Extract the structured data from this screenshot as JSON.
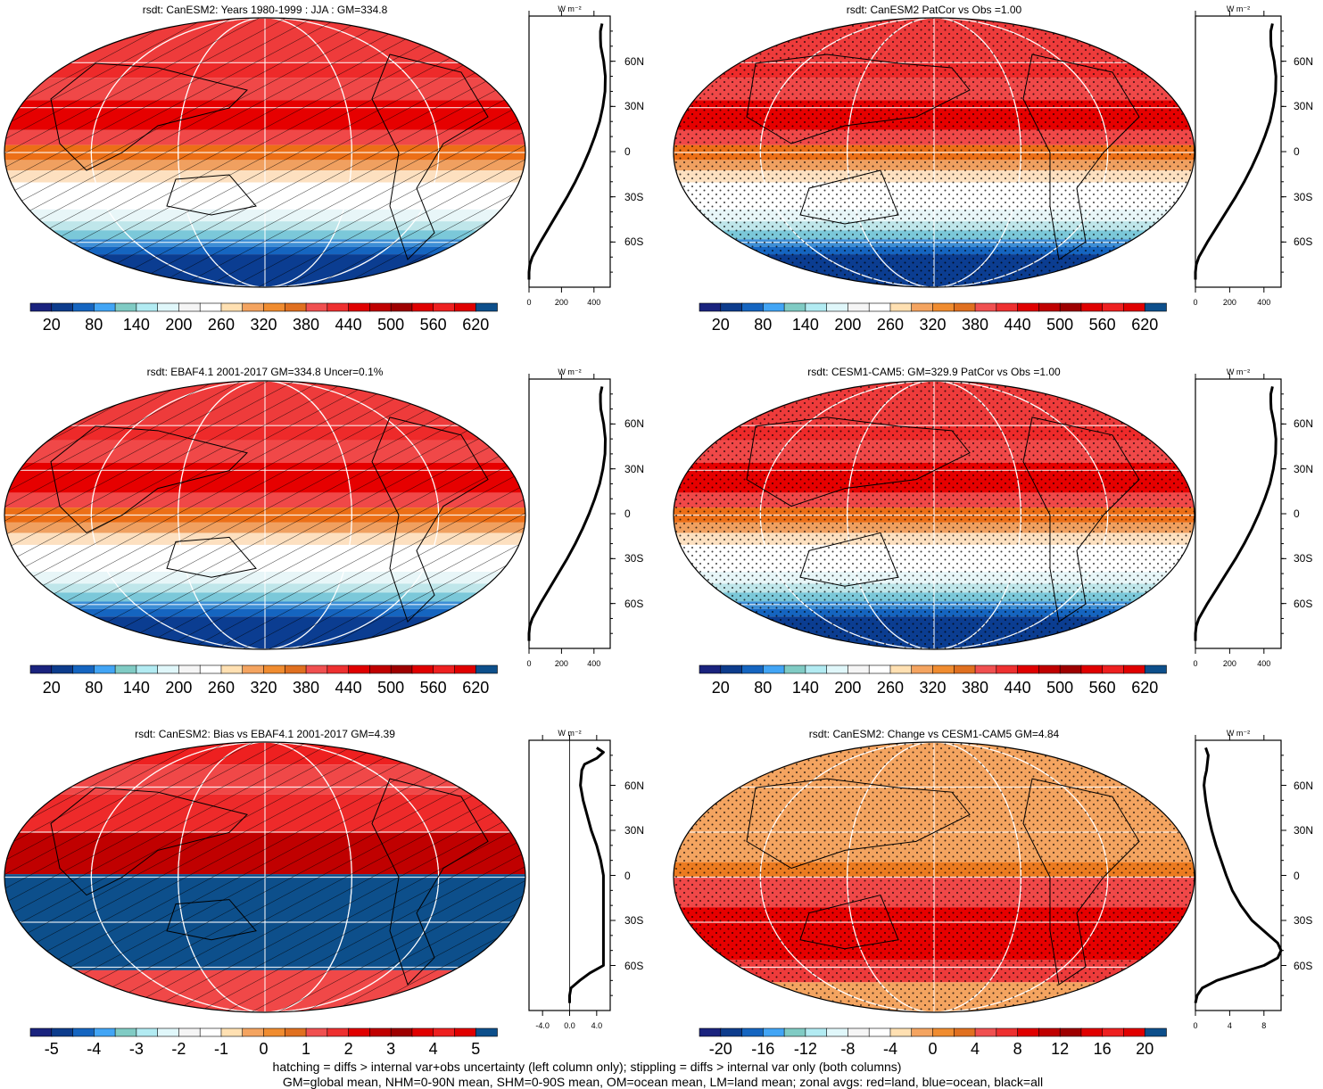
{
  "figure": {
    "footer_line1": "hatching = diffs > internal var+obs uncertainty (left column only); stippling = diffs > internal var only (both columns)",
    "footer_line2": "GM=global mean, NHM=0-90N mean, SHM=0-90S mean, OM=ocean mean, LM=land mean; zonal avgs: red=land, blue=ocean, black=all",
    "unit_label": "W m⁻²"
  },
  "palettes": {
    "abs": [
      "#1a237e",
      "#0d3c8c",
      "#1565c0",
      "#42a5f5",
      "#80cbc4",
      "#b2ebf2",
      "#e0f7fa",
      "#f5f5f5",
      "#ffffff",
      "#ffe0b2",
      "#f4a460",
      "#f08c30",
      "#e07020",
      "#f05050",
      "#ee3030",
      "#e00000",
      "#c00000",
      "#9e0000",
      "#e00000",
      "#ee2020",
      "#e00000",
      "#0d4f8b"
    ],
    "diff": [
      "#1a237e",
      "#0d3c8c",
      "#1565c0",
      "#42a5f5",
      "#80cbc4",
      "#b2ebf2",
      "#e0f7fa",
      "#f5f5f5",
      "#ffffff",
      "#ffe0b2",
      "#f4a460",
      "#f08c30",
      "#e07020",
      "#f05050",
      "#ee3030",
      "#e00000",
      "#c00000",
      "#9e0000",
      "#e00000",
      "#ee2020",
      "#e00000",
      "#0d4f8b"
    ]
  },
  "chart_data": [
    {
      "type": "heatmap",
      "panel": "top-left",
      "title": "rsdt: CanESM2: Years 1980-1999 : JJA : GM=334.8",
      "colorbar_labels": [
        "20",
        "80",
        "140",
        "200",
        "260",
        "320",
        "380",
        "440",
        "500",
        "560",
        "620"
      ],
      "overlay": "hatching",
      "lat_values": [
        90,
        75,
        60,
        45,
        30,
        15,
        0,
        -15,
        -30,
        -45,
        -60,
        -75,
        -90
      ],
      "field_values": [
        440,
        450,
        470,
        470,
        460,
        430,
        380,
        320,
        250,
        160,
        70,
        5,
        0
      ],
      "zonal_profile": {
        "x_ticks": [
          "0",
          "200",
          "400"
        ],
        "xlim": [
          0,
          500
        ],
        "y_ticks": [
          "60N",
          "30N",
          "0",
          "30S",
          "60S"
        ],
        "lat": [
          85,
          80,
          75,
          70,
          60,
          50,
          40,
          30,
          20,
          10,
          0,
          -10,
          -20,
          -30,
          -40,
          -50,
          -60,
          -70,
          -75,
          -80,
          -85
        ],
        "values": [
          450,
          440,
          440,
          442,
          460,
          470,
          468,
          455,
          435,
          405,
          370,
          330,
          285,
          235,
          180,
          125,
          70,
          20,
          5,
          0,
          0
        ]
      }
    },
    {
      "type": "heatmap",
      "panel": "top-right",
      "title": "rsdt: CanESM2 PatCor vs Obs =1.00",
      "colorbar_labels": [
        "20",
        "80",
        "140",
        "200",
        "260",
        "320",
        "380",
        "440",
        "500",
        "560",
        "620"
      ],
      "overlay": "stippling",
      "lat_values": [
        90,
        75,
        60,
        45,
        30,
        15,
        0,
        -15,
        -30,
        -45,
        -60,
        -75,
        -90
      ],
      "field_values": [
        440,
        450,
        470,
        470,
        460,
        430,
        380,
        320,
        250,
        160,
        70,
        5,
        0
      ],
      "zonal_profile": {
        "x_ticks": [
          "0",
          "200",
          "400"
        ],
        "xlim": [
          0,
          500
        ],
        "y_ticks": [
          "60N",
          "30N",
          "0",
          "30S",
          "60S"
        ],
        "lat": [
          85,
          80,
          75,
          70,
          60,
          50,
          40,
          30,
          20,
          10,
          0,
          -10,
          -20,
          -30,
          -40,
          -50,
          -60,
          -70,
          -75,
          -80,
          -85
        ],
        "values": [
          450,
          440,
          440,
          442,
          460,
          470,
          468,
          455,
          435,
          405,
          370,
          330,
          285,
          235,
          180,
          125,
          70,
          20,
          5,
          0,
          0
        ]
      }
    },
    {
      "type": "heatmap",
      "panel": "middle-left",
      "title": "rsdt: EBAF4.1 2001-2017 GM=334.8 Uncer=0.1%",
      "colorbar_labels": [
        "20",
        "80",
        "140",
        "200",
        "260",
        "320",
        "380",
        "440",
        "500",
        "560",
        "620"
      ],
      "overlay": "hatching",
      "lat_values": [
        90,
        75,
        60,
        45,
        30,
        15,
        0,
        -15,
        -30,
        -45,
        -60,
        -75,
        -90
      ],
      "field_values": [
        440,
        450,
        470,
        470,
        460,
        430,
        380,
        320,
        250,
        160,
        70,
        5,
        0
      ],
      "zonal_profile": {
        "x_ticks": [
          "0",
          "200",
          "400"
        ],
        "xlim": [
          0,
          500
        ],
        "y_ticks": [
          "60N",
          "30N",
          "0",
          "30S",
          "60S"
        ],
        "lat": [
          85,
          80,
          75,
          70,
          60,
          50,
          40,
          30,
          20,
          10,
          0,
          -10,
          -20,
          -30,
          -40,
          -50,
          -60,
          -70,
          -75,
          -80,
          -85
        ],
        "values": [
          450,
          440,
          440,
          442,
          460,
          470,
          468,
          455,
          435,
          405,
          370,
          330,
          285,
          235,
          180,
          125,
          70,
          20,
          5,
          0,
          0
        ]
      }
    },
    {
      "type": "heatmap",
      "panel": "middle-right",
      "title": "rsdt: CESM1-CAM5: GM=329.9 PatCor vs Obs =1.00",
      "colorbar_labels": [
        "20",
        "80",
        "140",
        "200",
        "260",
        "320",
        "380",
        "440",
        "500",
        "560",
        "620"
      ],
      "overlay": "stippling",
      "lat_values": [
        90,
        75,
        60,
        45,
        30,
        15,
        0,
        -15,
        -30,
        -45,
        -60,
        -75,
        -90
      ],
      "field_values": [
        440,
        450,
        470,
        470,
        460,
        430,
        380,
        320,
        250,
        160,
        70,
        5,
        0
      ],
      "zonal_profile": {
        "x_ticks": [
          "0",
          "200",
          "400"
        ],
        "xlim": [
          0,
          500
        ],
        "y_ticks": [
          "60N",
          "30N",
          "0",
          "30S",
          "60S"
        ],
        "lat": [
          85,
          80,
          75,
          70,
          60,
          50,
          40,
          30,
          20,
          10,
          0,
          -10,
          -20,
          -30,
          -40,
          -50,
          -60,
          -70,
          -75,
          -80,
          -85
        ],
        "values": [
          450,
          440,
          440,
          442,
          460,
          470,
          468,
          455,
          435,
          405,
          370,
          330,
          285,
          235,
          180,
          125,
          70,
          20,
          5,
          0,
          0
        ]
      }
    },
    {
      "type": "heatmap",
      "panel": "bottom-left",
      "title": "rsdt: CanESM2: Bias vs EBAF4.1 2001-2017 GM=4.39",
      "colorbar_labels": [
        "-5",
        "-4",
        "-3",
        "-2",
        "-1",
        "0",
        "1",
        "2",
        "3",
        "4",
        "5"
      ],
      "overlay": "hatching",
      "lat_values": [
        90,
        75,
        60,
        45,
        30,
        15,
        0,
        -15,
        -30,
        -45,
        -60,
        -75,
        -90
      ],
      "field_values": [
        4.5,
        4.5,
        4.5,
        4.5,
        4.5,
        4.5,
        -5,
        -5,
        -5,
        -5,
        -5,
        4.5,
        4.5
      ],
      "zonal_profile": {
        "x_ticks": [
          "-4.0",
          "0.0",
          "4.0"
        ],
        "xlim": [
          -6,
          6
        ],
        "y_ticks": [
          "60N",
          "30N",
          "0",
          "30S",
          "60S"
        ],
        "lat": [
          85,
          82,
          78,
          74,
          70,
          60,
          50,
          40,
          30,
          20,
          10,
          0,
          -60,
          -65,
          -70,
          -75,
          -80,
          -85
        ],
        "values": [
          4.0,
          5.0,
          4.0,
          2.2,
          1.8,
          1.6,
          2.0,
          2.6,
          3.2,
          4.0,
          4.6,
          5.0,
          5.0,
          3.0,
          1.5,
          0.2,
          0,
          0
        ]
      }
    },
    {
      "type": "heatmap",
      "panel": "bottom-right",
      "title": "rsdt: CanESM2: Change vs CESM1-CAM5 GM=4.84",
      "colorbar_labels": [
        "-20",
        "-16",
        "-12",
        "-8",
        "-4",
        "0",
        "4",
        "8",
        "12",
        "16",
        "20"
      ],
      "overlay": "stippling",
      "lat_values": [
        90,
        75,
        60,
        45,
        30,
        15,
        0,
        -15,
        -30,
        -45,
        -60,
        -75,
        -90
      ],
      "field_values": [
        3,
        3,
        3,
        3,
        3,
        3,
        3,
        6,
        9,
        9,
        3,
        3,
        3
      ],
      "zonal_profile": {
        "x_ticks": [
          "0",
          "4",
          "8"
        ],
        "xlim": [
          0,
          10
        ],
        "y_ticks": [
          "60N",
          "30N",
          "0",
          "30S",
          "60S"
        ],
        "lat": [
          85,
          80,
          75,
          70,
          65,
          60,
          50,
          40,
          30,
          20,
          10,
          0,
          -10,
          -20,
          -30,
          -40,
          -45,
          -50,
          -55,
          -60,
          -65,
          -70,
          -75,
          -80,
          -85
        ],
        "values": [
          1.2,
          1.5,
          1.4,
          1.3,
          1.1,
          1.0,
          1.2,
          1.5,
          1.9,
          2.4,
          3.0,
          3.6,
          4.3,
          5.3,
          6.6,
          8.6,
          9.6,
          10.0,
          9.6,
          8.0,
          5.2,
          2.5,
          0.8,
          0.2,
          0
        ]
      }
    }
  ]
}
